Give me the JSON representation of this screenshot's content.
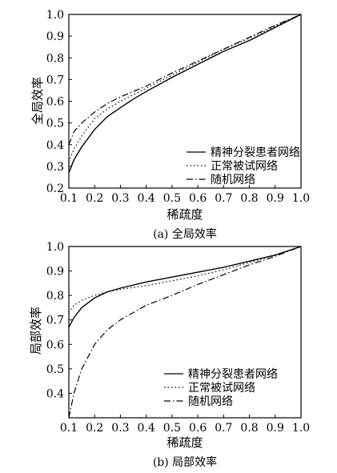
{
  "chart_data": [
    {
      "type": "line",
      "xlabel": "稀疏度",
      "ylabel": "全局效率",
      "caption": "(a) 全局效率",
      "xlim": [
        0.1,
        1.0
      ],
      "ylim": [
        0.2,
        1.0
      ],
      "xticks": [
        "0.1",
        "0.2",
        "0.3",
        "0.4",
        "0.5",
        "0.6",
        "0.7",
        "0.8",
        "0.9",
        "1.0"
      ],
      "yticks": [
        "0.2",
        "0.3",
        "0.4",
        "0.5",
        "0.6",
        "0.7",
        "0.8",
        "0.9",
        "1.0"
      ],
      "legend": "bottom-right",
      "series": [
        {
          "name": "精神分裂患者网络",
          "style": "solid",
          "x": [
            0.1,
            0.12,
            0.15,
            0.2,
            0.25,
            0.3,
            0.35,
            0.4,
            0.5,
            0.6,
            0.7,
            0.8,
            0.9,
            1.0
          ],
          "y": [
            0.27,
            0.33,
            0.39,
            0.47,
            0.53,
            0.57,
            0.61,
            0.645,
            0.71,
            0.77,
            0.83,
            0.88,
            0.94,
            1.0
          ]
        },
        {
          "name": "正常被试网络",
          "style": "dotted",
          "x": [
            0.1,
            0.12,
            0.15,
            0.2,
            0.25,
            0.3,
            0.35,
            0.4,
            0.5,
            0.6,
            0.7,
            0.8,
            0.9,
            1.0
          ],
          "y": [
            0.32,
            0.38,
            0.44,
            0.52,
            0.565,
            0.6,
            0.63,
            0.66,
            0.72,
            0.78,
            0.84,
            0.89,
            0.945,
            1.0
          ]
        },
        {
          "name": "随机网络",
          "style": "dashdot",
          "x": [
            0.1,
            0.12,
            0.15,
            0.2,
            0.25,
            0.3,
            0.35,
            0.4,
            0.5,
            0.6,
            0.7,
            0.8,
            0.9,
            1.0
          ],
          "y": [
            0.4,
            0.46,
            0.5,
            0.55,
            0.59,
            0.62,
            0.645,
            0.67,
            0.73,
            0.785,
            0.84,
            0.895,
            0.95,
            1.0
          ]
        }
      ]
    },
    {
      "type": "line",
      "xlabel": "稀疏度",
      "ylabel": "局部效率",
      "caption": "(b) 局部效率",
      "xlim": [
        0.1,
        1.0
      ],
      "ylim": [
        0.3,
        1.0
      ],
      "xticks": [
        "0.1",
        "0.2",
        "0.3",
        "0.4",
        "0.5",
        "0.6",
        "0.7",
        "0.8",
        "0.9",
        "1.0"
      ],
      "yticks": [
        "0.4",
        "0.5",
        "0.6",
        "0.7",
        "0.8",
        "0.9",
        "1.0"
      ],
      "legend": "bottom-right",
      "series": [
        {
          "name": "精神分裂患者网络",
          "style": "solid",
          "x": [
            0.1,
            0.12,
            0.15,
            0.2,
            0.25,
            0.3,
            0.4,
            0.5,
            0.6,
            0.7,
            0.8,
            0.9,
            1.0
          ],
          "y": [
            0.67,
            0.71,
            0.75,
            0.79,
            0.815,
            0.83,
            0.855,
            0.875,
            0.895,
            0.915,
            0.94,
            0.965,
            1.0
          ]
        },
        {
          "name": "正常被试网络",
          "style": "dotted",
          "x": [
            0.1,
            0.12,
            0.15,
            0.2,
            0.25,
            0.3,
            0.4,
            0.5,
            0.6,
            0.7,
            0.8,
            0.9,
            1.0
          ],
          "y": [
            0.73,
            0.76,
            0.78,
            0.8,
            0.815,
            0.825,
            0.84,
            0.86,
            0.88,
            0.905,
            0.935,
            0.965,
            1.0
          ]
        },
        {
          "name": "随机网络",
          "style": "dashdot",
          "x": [
            0.1,
            0.12,
            0.15,
            0.2,
            0.25,
            0.3,
            0.4,
            0.5,
            0.6,
            0.7,
            0.8,
            0.9,
            1.0
          ],
          "y": [
            0.3,
            0.4,
            0.5,
            0.6,
            0.66,
            0.7,
            0.76,
            0.8,
            0.845,
            0.885,
            0.925,
            0.96,
            1.0
          ]
        }
      ]
    }
  ]
}
